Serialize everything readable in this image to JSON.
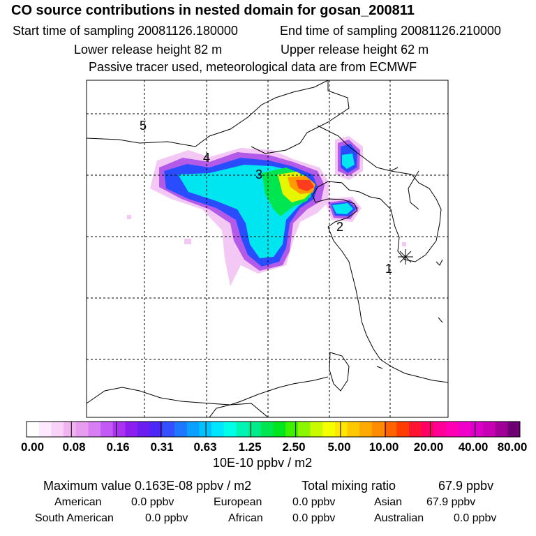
{
  "header": {
    "title": "CO  source contributions in nested domain for gosan_200811",
    "start_label": "Start time of sampling 20081126.180000",
    "end_label": "End time of sampling 20081126.210000",
    "lower_label": "Lower release height   82 m",
    "upper_label": "Upper release height   62 m",
    "tracer_label": "Passive tracer used, meteorological data are from ECMWF"
  },
  "map": {
    "numbers": [
      "1",
      "2",
      "3",
      "4",
      "5"
    ],
    "receptor_icon": "asterisk-icon"
  },
  "colorbar": {
    "colors": [
      "#ffffff",
      "#fdebfd",
      "#f8d2f8",
      "#f0b4f0",
      "#e89cf0",
      "#d77ef5",
      "#c35af5",
      "#aa33f0",
      "#8c1ef0",
      "#6a1ef0",
      "#4b28f5",
      "#3250ff",
      "#1e78ff",
      "#0aa0ff",
      "#00c3ff",
      "#00e6ff",
      "#00ffe6",
      "#00f5b4",
      "#00eb8c",
      "#00e650",
      "#00e61e",
      "#3cf000",
      "#8cf500",
      "#c8fa00",
      "#f5ff00",
      "#ffe600",
      "#ffc800",
      "#ffaa00",
      "#ff8c00",
      "#ff6400",
      "#ff3c00",
      "#ff1432",
      "#ff0064",
      "#ff0096",
      "#ff00b4",
      "#f000c8",
      "#dc00c8",
      "#c800b4",
      "#a00096",
      "#6e0073"
    ],
    "labels": [
      "0.00",
      "0.08",
      "0.16",
      "0.31",
      "0.63",
      "1.25",
      "2.50",
      "5.00",
      "10.00",
      "20.00",
      "40.00",
      "80.00"
    ],
    "units": "10E-10 ppbv / m2"
  },
  "summary": {
    "max_label": "Maximum value  0.163E-08 ppbv / m2",
    "total_label": "Total mixing ratio",
    "total_value": "67.9 ppbv",
    "american_label": "American",
    "american_value": "0.0 ppbv",
    "european_label": "European",
    "european_value": "0.0 ppbv",
    "asian_label": "Asian",
    "asian_value": "67.9 ppbv",
    "south_american_label": "South American",
    "south_american_value": "0.0 ppbv",
    "african_label": "African",
    "african_value": "0.0 ppbv",
    "australian_label": "Australian",
    "australian_value": "0.0 ppbv"
  }
}
